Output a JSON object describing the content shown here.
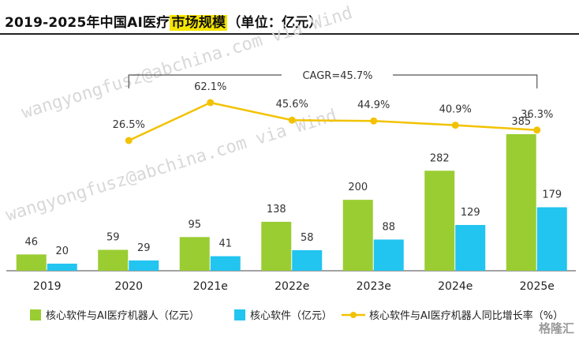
{
  "title": {
    "prefix": "2019-2025年中国AI医疗",
    "highlight": "市场规模",
    "suffix": "（单位：亿元）"
  },
  "watermark": "wangyongfusz@abchina.com via Wind",
  "logo": "格隆汇",
  "cagr_label": "CAGR=45.7%",
  "chart_data": {
    "type": "bar",
    "categories": [
      "2019",
      "2020",
      "2021e",
      "2022e",
      "2023e",
      "2024e",
      "2025e"
    ],
    "series": [
      {
        "name": "核心软件与AI医疗机器人（亿元）",
        "type": "bar",
        "color": "#9acd32",
        "values": [
          46,
          59,
          95,
          138,
          200,
          282,
          385
        ]
      },
      {
        "name": "核心软件（亿元）",
        "type": "bar",
        "color": "#22c4f0",
        "values": [
          20,
          29,
          41,
          58,
          88,
          129,
          179
        ]
      },
      {
        "name": "核心软件与AI医疗机器人同比增长率（%）",
        "type": "line",
        "color": "#f2c200",
        "values": [
          null,
          26.5,
          62.1,
          45.6,
          44.9,
          40.9,
          36.3
        ],
        "labels": [
          "",
          "26.5%",
          "62.1%",
          "45.6%",
          "44.9%",
          "40.9%",
          "36.3%"
        ]
      }
    ],
    "legend_position": "bottom",
    "grid": false
  }
}
